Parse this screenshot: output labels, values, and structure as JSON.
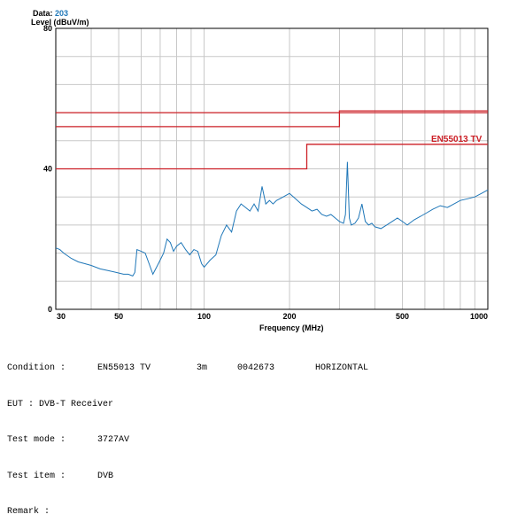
{
  "header": {
    "data_label": "Data:",
    "data_value": "203"
  },
  "colors": {
    "limit_line": "#cc1f26",
    "trace": "#1f77b8",
    "grid": "#c8c8c8",
    "data_value": "#1f77b8"
  },
  "chart_data": {
    "type": "line",
    "x_scale": "log",
    "xlabel": "Frequency (MHz)",
    "ylabel": "Level (dBuV/m)",
    "xlim": [
      30,
      1000
    ],
    "ylim": [
      0,
      80
    ],
    "x_ticks": [
      30,
      50,
      100,
      200,
      500,
      1000
    ],
    "x_tick_labels": [
      "30",
      "50",
      "100",
      "200",
      "500",
      "1000"
    ],
    "y_ticks": [
      0,
      40,
      80
    ],
    "y_tick_labels": [
      "0",
      "40",
      "80"
    ],
    "grid": true,
    "limits": [
      {
        "x": [
          30,
          300,
          300,
          1000
        ],
        "y": [
          56,
          56,
          56.5,
          56.5
        ]
      },
      {
        "x": [
          30,
          300,
          300,
          1000
        ],
        "y": [
          52,
          52,
          56,
          56
        ]
      },
      {
        "x": [
          30,
          230,
          230,
          1000
        ],
        "y": [
          40,
          40,
          47,
          47
        ]
      }
    ],
    "limit_label": "EN55013 TV",
    "series": [
      {
        "x": [
          30,
          31,
          32,
          34,
          36,
          38,
          40,
          43,
          46,
          49,
          52,
          54,
          56,
          57,
          58,
          60,
          62,
          64,
          66,
          68,
          70,
          72,
          74,
          76,
          78,
          80,
          83,
          86,
          89,
          92,
          95,
          98,
          100,
          105,
          110,
          115,
          120,
          125,
          130,
          135,
          140,
          145,
          150,
          155,
          160,
          165,
          170,
          175,
          180,
          190,
          200,
          210,
          220,
          230,
          240,
          250,
          260,
          270,
          280,
          290,
          300,
          310,
          315,
          320,
          325,
          330,
          340,
          350,
          360,
          370,
          380,
          390,
          400,
          420,
          440,
          460,
          480,
          500,
          520,
          550,
          580,
          610,
          640,
          680,
          720,
          760,
          800,
          850,
          900,
          950,
          1000
        ],
        "y": [
          17.5,
          17,
          16,
          14.5,
          13.5,
          13,
          12.5,
          11.5,
          11,
          10.5,
          10,
          10,
          9.5,
          10.5,
          17,
          16.5,
          16,
          13,
          10,
          12,
          14,
          16,
          20,
          19,
          16.5,
          18,
          19,
          17,
          15.5,
          17,
          16.5,
          13,
          12,
          14,
          15.5,
          21,
          24,
          22,
          28,
          30,
          29,
          28,
          30,
          28,
          35,
          30,
          31,
          30,
          31,
          32,
          33,
          31.5,
          30,
          29,
          28,
          28.5,
          27,
          26.5,
          27,
          26,
          25,
          24.5,
          27,
          42,
          26,
          24,
          24.5,
          26,
          30,
          25,
          24,
          24.5,
          23.5,
          23,
          24,
          25,
          26,
          25,
          24,
          25.5,
          26.5,
          27.5,
          28.5,
          29.5,
          29,
          30,
          31,
          31.5,
          32,
          33,
          34
        ]
      }
    ]
  },
  "info": {
    "condition_label": "Condition :",
    "condition_value": "EN55013 TV",
    "distance": "3m",
    "report_no": "0042673",
    "polarization": "HORIZONTAL",
    "eut_label": "EUT : ",
    "eut_value": "DVB-T Receiver",
    "test_mode_label": "Test mode :",
    "test_mode_value": "3727AV",
    "test_item_label": "Test item :",
    "test_item_value": "DVB",
    "remark_label": "Remark :",
    "remark_value": ""
  }
}
